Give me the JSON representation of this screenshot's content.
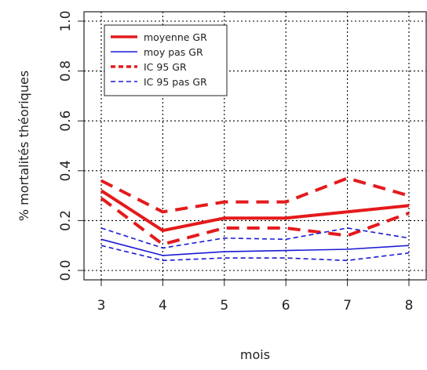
{
  "chart_data": {
    "type": "line",
    "title": "",
    "xlabel": "mois",
    "ylabel": "% mortalités théoriques",
    "x": [
      3,
      4,
      5,
      6,
      7,
      8
    ],
    "x_ticks": [
      "3",
      "4",
      "5",
      "6",
      "7",
      "8"
    ],
    "y_ticks": [
      "0.0",
      "0.2",
      "0.4",
      "0.6",
      "0.8",
      "1.0"
    ],
    "xlim": [
      3,
      8
    ],
    "ylim": [
      0,
      1
    ],
    "grid": true,
    "legend_position": "top-left",
    "series": [
      {
        "name": "moyenne GR",
        "color": "#e41a1c",
        "style": "solid",
        "weight": "thick",
        "values": [
          0.32,
          0.16,
          0.21,
          0.21,
          0.235,
          0.26
        ]
      },
      {
        "name": "moy pas GR",
        "color": "#1a1ad6",
        "style": "solid",
        "weight": "thin",
        "values": [
          0.125,
          0.06,
          0.075,
          0.08,
          0.085,
          0.1
        ]
      },
      {
        "name": "IC 95 GR",
        "color": "#e41a1c",
        "style": "dashed",
        "weight": "thick",
        "values_upper": [
          0.36,
          0.235,
          0.275,
          0.275,
          0.37,
          0.3
        ],
        "values_lower": [
          0.29,
          0.105,
          0.17,
          0.17,
          0.14,
          0.23
        ]
      },
      {
        "name": "IC 95 pas GR",
        "color": "#1a1ad6",
        "style": "dashed",
        "weight": "thin",
        "values_upper": [
          0.17,
          0.09,
          0.13,
          0.125,
          0.17,
          0.13
        ],
        "values_lower": [
          0.1,
          0.04,
          0.05,
          0.05,
          0.04,
          0.07
        ]
      }
    ]
  }
}
